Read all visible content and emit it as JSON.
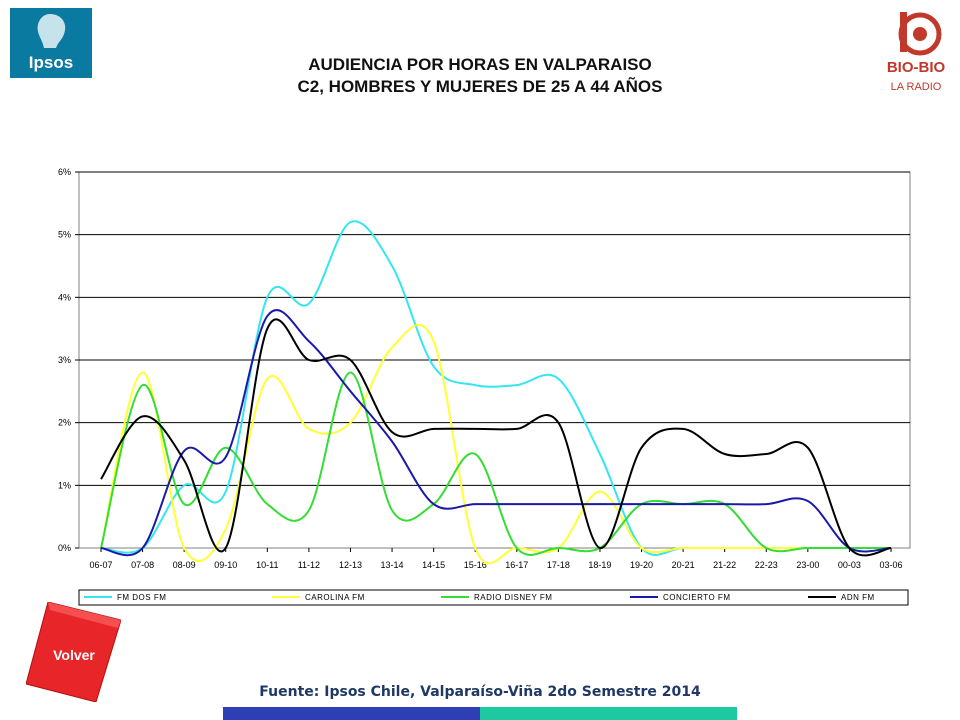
{
  "header": {
    "title_line1": "AUDIENCIA POR HORAS EN VALPARAISO",
    "title_line2": "C2, HOMBRES Y MUJERES DE 25 A 44 AÑOS"
  },
  "logos": {
    "ipsos_text": "Ipsos",
    "bio_text": "BIO-BIO",
    "bio_sub": "LA RADIO"
  },
  "volver_label": "Volver",
  "source": "Fuente: Ipsos Chile, Valparaíso-Viña 2do Semestre 2014",
  "colors": {
    "ipsos_blue": "#0a7aa0",
    "bio_red": "#c0392b",
    "volver_red": "#e8262a",
    "bar_left": "#2e3fb5",
    "bar_right": "#1ec8a0"
  },
  "chart_data": {
    "type": "line",
    "categories": [
      "06-07",
      "07-08",
      "08-09",
      "09-10",
      "10-11",
      "11-12",
      "12-13",
      "13-14",
      "14-15",
      "15-16",
      "16-17",
      "17-18",
      "18-19",
      "19-20",
      "20-21",
      "21-22",
      "22-23",
      "23-00",
      "00-03",
      "03-06"
    ],
    "y_ticks": [
      "0%",
      "1%",
      "2%",
      "3%",
      "4%",
      "5%",
      "6%"
    ],
    "ylim": [
      0,
      6
    ],
    "grid": true,
    "legend_position": "bottom",
    "series": [
      {
        "name": "FM DOS FM",
        "color": "#33e6f0",
        "values": [
          0,
          0,
          1.0,
          0.9,
          4.0,
          3.9,
          5.2,
          4.5,
          2.9,
          2.6,
          2.6,
          2.7,
          1.5,
          0,
          0,
          0,
          0,
          0,
          0,
          0
        ]
      },
      {
        "name": "CAROLINA FM",
        "color": "#ffff33",
        "values": [
          0,
          2.8,
          0,
          0.3,
          2.7,
          1.9,
          2.0,
          3.2,
          3.3,
          0,
          0,
          0,
          0.9,
          0,
          0,
          0,
          0,
          0,
          0,
          0
        ]
      },
      {
        "name": "RADIO DISNEY FM",
        "color": "#33dd33",
        "values": [
          0,
          2.6,
          0.7,
          1.6,
          0.7,
          0.6,
          2.8,
          0.6,
          0.7,
          1.5,
          0,
          0,
          0,
          0.7,
          0.7,
          0.7,
          0,
          0,
          0,
          0
        ]
      },
      {
        "name": "CONCIERTO FM",
        "color": "#1a1aaa",
        "values": [
          0,
          0,
          1.55,
          1.45,
          3.7,
          3.3,
          2.5,
          1.7,
          0.7,
          0.7,
          0.7,
          0.7,
          0.7,
          0.7,
          0.7,
          0.7,
          0.7,
          0.75,
          0,
          0
        ]
      },
      {
        "name": "ADN FM",
        "color": "#000000",
        "values": [
          1.1,
          2.1,
          1.4,
          0,
          3.5,
          3.0,
          3.0,
          1.85,
          1.9,
          1.9,
          1.9,
          2.0,
          0,
          1.6,
          1.9,
          1.5,
          1.5,
          1.6,
          0,
          0
        ]
      }
    ]
  }
}
